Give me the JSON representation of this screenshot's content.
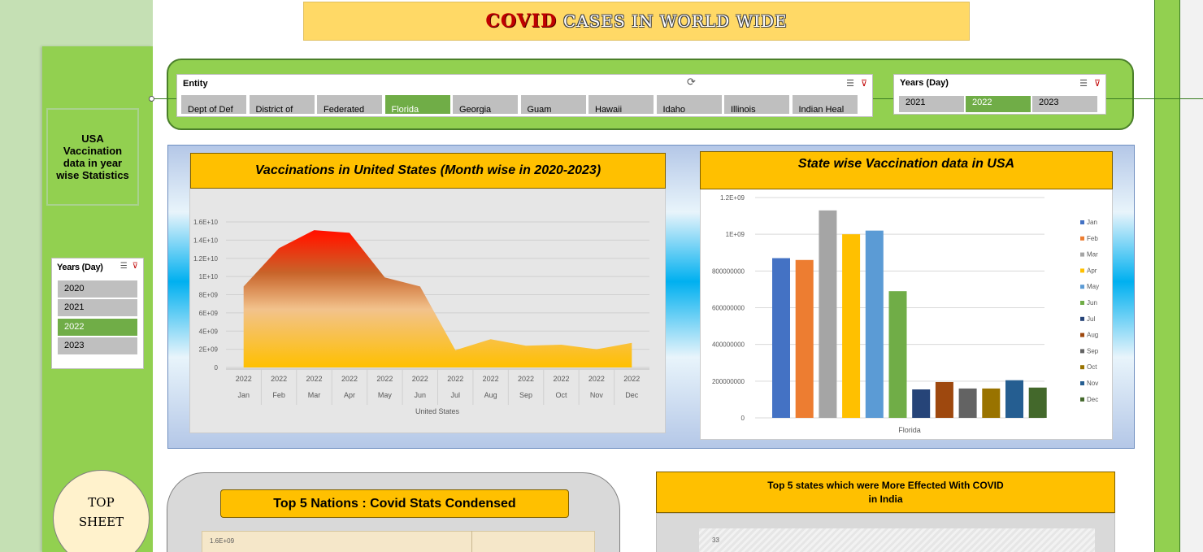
{
  "title": {
    "part1": "COVID",
    "part2": "CASES IN WORLD WIDE"
  },
  "entity_slicer": {
    "header": "Entity",
    "items": [
      "Dept of Def",
      "District of",
      "Federated",
      "Florida",
      "Georgia",
      "Guam",
      "Hawaii",
      "Idaho",
      "Illinois",
      "Indian Heal"
    ],
    "selected": "Florida"
  },
  "years_top_slicer": {
    "header": "Years (Day)",
    "items": [
      "2021",
      "2022",
      "2023"
    ],
    "selected": "2022"
  },
  "years_left_slicer": {
    "header": "Years (Day)",
    "items": [
      "2020",
      "2021",
      "2022",
      "2023"
    ],
    "selected": "2022"
  },
  "sidebar": {
    "label": "USA Vaccination data in year wise Statistics",
    "top_sheet_line1": "TOP",
    "top_sheet_line2": "SHEET"
  },
  "icons": {
    "multiselect": "multi-select-icon",
    "clear": "clear-filter-icon",
    "rotate": "rotate-handle-icon"
  },
  "chart_data": [
    {
      "type": "area",
      "title": "Vaccinations  in United States (Month wise in 2020-2023)",
      "categories": [
        "Jan",
        "Feb",
        "Mar",
        "Apr",
        "May",
        "Jun",
        "Jul",
        "Aug",
        "Sep",
        "Oct",
        "Nov",
        "Dec"
      ],
      "category_year": "2022",
      "xlabel": "United States",
      "ylim": [
        0,
        16000000000
      ],
      "yticks": [
        0,
        2000000000,
        4000000000,
        6000000000,
        8000000000,
        10000000000,
        12000000000,
        14000000000,
        16000000000
      ],
      "ytick_labels": [
        "0",
        "2E+09",
        "4E+09",
        "6E+09",
        "8E+09",
        "1E+10",
        "1.2E+10",
        "1.4E+10",
        "1.6E+10"
      ],
      "values": [
        8900000000,
        13100000000,
        15100000000,
        14800000000,
        9900000000,
        8900000000,
        1900000000,
        3100000000,
        2400000000,
        2500000000,
        2000000000,
        2700000000
      ],
      "grid": true,
      "colors": {
        "top": "#ff0000",
        "bottom": "#ffc000"
      }
    },
    {
      "type": "bar",
      "title": "State wise Vaccination data in USA",
      "category": "Florida",
      "ylim": [
        0,
        1200000000
      ],
      "yticks": [
        0,
        200000000,
        400000000,
        600000000,
        800000000,
        1000000000,
        1200000000
      ],
      "ytick_labels": [
        "0",
        "200000000",
        "400000000",
        "600000000",
        "800000000",
        "1E+09",
        "1.2E+09"
      ],
      "series": [
        {
          "name": "Jan",
          "value": 870000000,
          "color": "#4472c4"
        },
        {
          "name": "Feb",
          "value": 860000000,
          "color": "#ed7d31"
        },
        {
          "name": "Mar",
          "value": 1130000000,
          "color": "#a5a5a5"
        },
        {
          "name": "Apr",
          "value": 1000000000,
          "color": "#ffc000"
        },
        {
          "name": "May",
          "value": 1020000000,
          "color": "#5b9bd5"
        },
        {
          "name": "Jun",
          "value": 690000000,
          "color": "#70ad47"
        },
        {
          "name": "Jul",
          "value": 155000000,
          "color": "#264478"
        },
        {
          "name": "Aug",
          "value": 195000000,
          "color": "#9e480e"
        },
        {
          "name": "Sep",
          "value": 160000000,
          "color": "#636363"
        },
        {
          "name": "Oct",
          "value": 160000000,
          "color": "#997300"
        },
        {
          "name": "Nov",
          "value": 205000000,
          "color": "#255e91"
        },
        {
          "name": "Dec",
          "value": 165000000,
          "color": "#43682b"
        }
      ],
      "legend": "right",
      "grid": true
    }
  ],
  "nations_chart": {
    "title": "Top 5 Nations : Covid Stats Condensed",
    "first_tick": "1.6E+09"
  },
  "india_chart": {
    "title_line1": "Top 5 states which were  More Effected With COVID",
    "title_line2": "in India",
    "first_tick": "33"
  }
}
